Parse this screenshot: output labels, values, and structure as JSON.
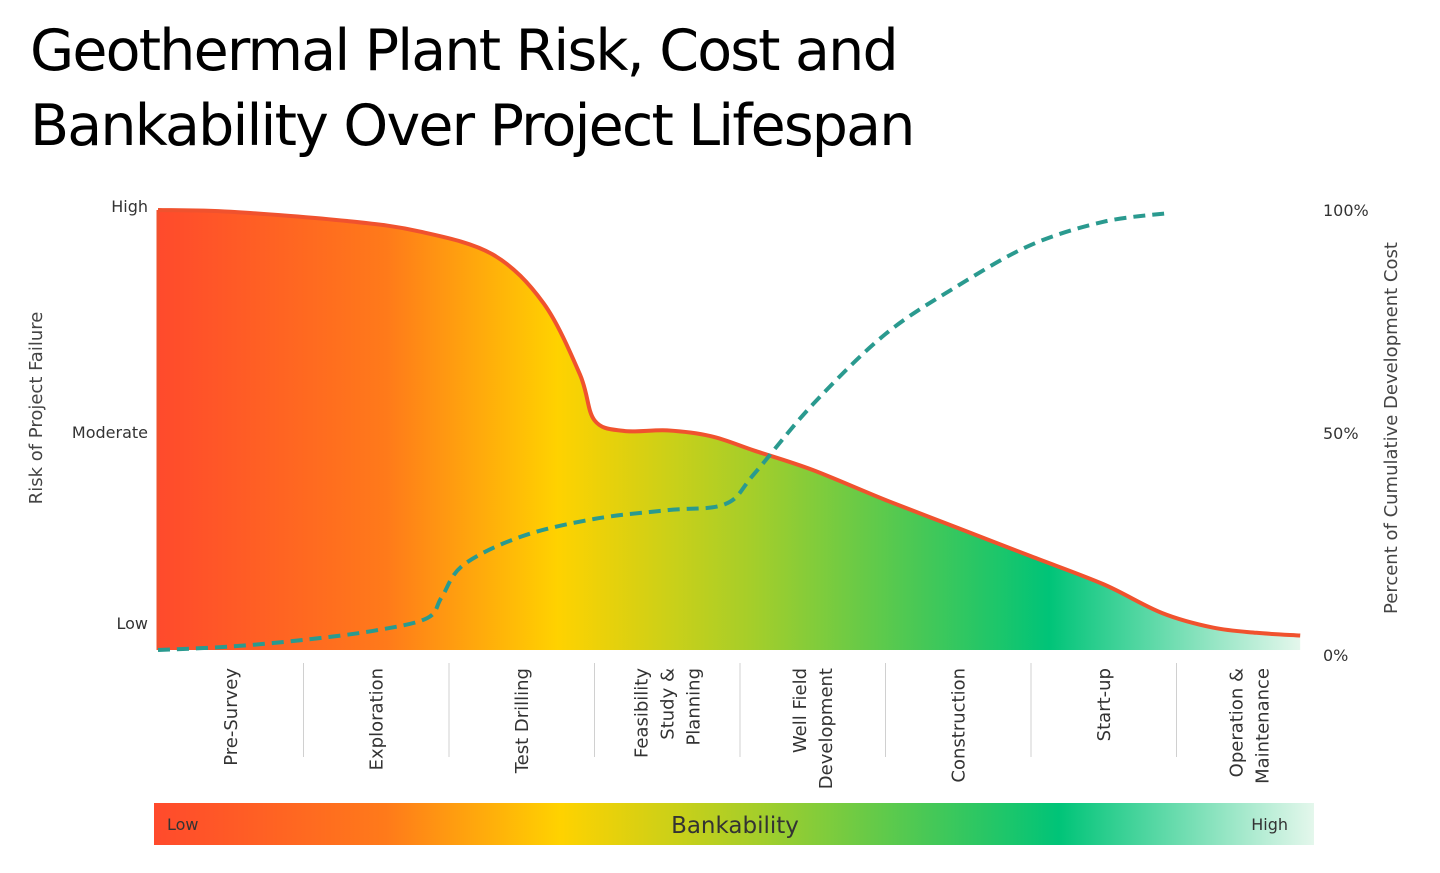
{
  "title_lines": [
    "Geothermal Plant Risk, Cost and",
    "Bankability Over Project Lifespan"
  ],
  "chart_data": {
    "type": "area",
    "title": "Geothermal Plant Risk, Cost and Bankability Over Project Lifespan",
    "ylabel": "Risk of Project Failure",
    "y2label": "Percent of Cumulative Development Cost",
    "y_ticks": [
      "High",
      "Moderate",
      "Low"
    ],
    "y2_ticks": [
      "100%",
      "50%",
      "0%"
    ],
    "y2lim": [
      0,
      100
    ],
    "x_range": [
      0,
      8
    ],
    "categories": [
      [
        "Pre-Survey"
      ],
      [
        "Exploration"
      ],
      [
        "Test Drilling"
      ],
      [
        "Feasibility",
        "Study &",
        "Planning"
      ],
      [
        "Well Field",
        "Development"
      ],
      [
        "Construction"
      ],
      [
        "Start-up"
      ],
      [
        "Operation &",
        "Maintenance"
      ]
    ],
    "series": [
      {
        "name": "Risk of Project Failure",
        "axis": "left",
        "style": "solid",
        "color": "#f0522e",
        "points": [
          [
            0,
            100
          ],
          [
            0.5,
            99.6
          ],
          [
            1.3,
            97.5
          ],
          [
            1.8,
            95.1
          ],
          [
            2.3,
            89.9
          ],
          [
            2.65,
            78.8
          ],
          [
            2.9,
            62.6
          ],
          [
            3.0,
            52.2
          ],
          [
            3.2,
            49.8
          ],
          [
            3.5,
            49.9
          ],
          [
            3.8,
            48.6
          ],
          [
            4.1,
            45.3
          ],
          [
            4.5,
            40.9
          ],
          [
            5.0,
            34.1
          ],
          [
            5.5,
            27.7
          ],
          [
            6.0,
            21.3
          ],
          [
            6.5,
            14.9
          ],
          [
            6.9,
            8.4
          ],
          [
            7.25,
            5.1
          ],
          [
            7.55,
            3.9
          ],
          [
            7.85,
            3.3
          ]
        ]
      },
      {
        "name": "Percent of Cumulative Development Cost",
        "axis": "right",
        "style": "dashed",
        "color": "#2a9a8f",
        "points": [
          [
            0,
            0
          ],
          [
            0.5,
            0.8
          ],
          [
            1.0,
            2.3
          ],
          [
            1.5,
            4.5
          ],
          [
            1.85,
            7.3
          ],
          [
            1.95,
            12.1
          ],
          [
            2.1,
            19.5
          ],
          [
            2.5,
            26.0
          ],
          [
            3.0,
            30.0
          ],
          [
            3.5,
            32.0
          ],
          [
            3.9,
            33.4
          ],
          [
            4.1,
            40.4
          ],
          [
            4.5,
            56.2
          ],
          [
            5.0,
            72.3
          ],
          [
            5.5,
            83.4
          ],
          [
            6.0,
            92.7
          ],
          [
            6.5,
            98.0
          ],
          [
            6.95,
            100
          ]
        ]
      }
    ],
    "gradient_colors": [
      "#ff4a2c",
      "#ff7a1a",
      "#ffd200",
      "#a5ce2a",
      "#00c478",
      "#e4f7ec"
    ],
    "bankability": {
      "label": "Bankability",
      "low": "Low",
      "high": "High"
    },
    "grid": false,
    "legend": "none"
  }
}
